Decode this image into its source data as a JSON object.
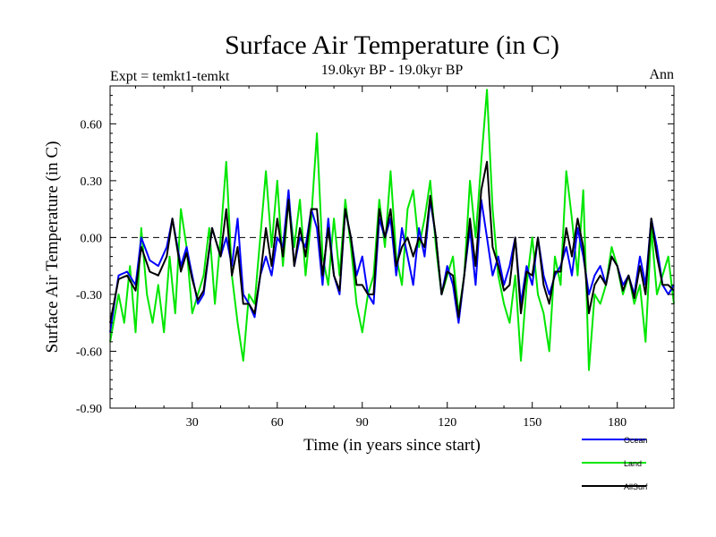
{
  "chart_data": {
    "type": "line",
    "title": "Surface Air Temperature (in C)",
    "subtitle": "19.0kyr BP - 19.0kyr BP",
    "left_label": "Expt = temkt1-temkt",
    "right_label": "Ann",
    "xlabel": "Time (in years since start)",
    "ylabel": "Surface Air Temperature (in C)",
    "xlim": [
      1,
      200
    ],
    "ylim": [
      -0.9,
      0.8
    ],
    "xticks": [
      30,
      60,
      90,
      120,
      150,
      180
    ],
    "yticks": [
      -0.9,
      -0.6,
      -0.3,
      0.0,
      0.3,
      0.6
    ],
    "ytick_labels": [
      "-0.90",
      "-0.60",
      "-0.30",
      "0.00",
      "0.30",
      "0.60"
    ],
    "reference_line": 0.0,
    "legend": {
      "placement": "bottom-right"
    },
    "keypoints": {
      "Ocean": [
        [
          1,
          -0.5
        ],
        [
          4,
          -0.2
        ],
        [
          7,
          -0.18
        ],
        [
          10,
          -0.25
        ],
        [
          12,
          0.0
        ],
        [
          15,
          -0.12
        ],
        [
          18,
          -0.15
        ],
        [
          21,
          -0.05
        ],
        [
          23,
          0.1
        ],
        [
          26,
          -0.15
        ],
        [
          28,
          -0.05
        ],
        [
          30,
          -0.2
        ],
        [
          32,
          -0.35
        ],
        [
          34,
          -0.3
        ],
        [
          37,
          0.05
        ],
        [
          40,
          -0.1
        ],
        [
          42,
          0.0
        ],
        [
          44,
          -0.15
        ],
        [
          46,
          0.1
        ],
        [
          48,
          -0.3
        ],
        [
          50,
          -0.35
        ],
        [
          52,
          -0.42
        ],
        [
          54,
          -0.2
        ],
        [
          56,
          -0.1
        ],
        [
          58,
          -0.2
        ],
        [
          60,
          0.0
        ],
        [
          62,
          -0.05
        ],
        [
          64,
          0.25
        ],
        [
          66,
          -0.15
        ],
        [
          68,
          0.0
        ],
        [
          70,
          -0.05
        ],
        [
          72,
          0.15
        ],
        [
          74,
          0.05
        ],
        [
          76,
          -0.25
        ],
        [
          78,
          0.1
        ],
        [
          80,
          -0.2
        ],
        [
          82,
          -0.3
        ],
        [
          84,
          0.15
        ],
        [
          86,
          0.0
        ],
        [
          88,
          -0.2
        ],
        [
          90,
          -0.1
        ],
        [
          92,
          -0.3
        ],
        [
          94,
          -0.35
        ],
        [
          96,
          0.1
        ],
        [
          98,
          0.0
        ],
        [
          100,
          0.1
        ],
        [
          102,
          -0.2
        ],
        [
          104,
          0.05
        ],
        [
          106,
          -0.1
        ],
        [
          108,
          -0.25
        ],
        [
          110,
          0.05
        ],
        [
          112,
          -0.1
        ],
        [
          114,
          0.2
        ],
        [
          116,
          0.0
        ],
        [
          118,
          -0.3
        ],
        [
          120,
          -0.15
        ],
        [
          122,
          -0.25
        ],
        [
          124,
          -0.45
        ],
        [
          126,
          -0.2
        ],
        [
          128,
          0.05
        ],
        [
          130,
          -0.25
        ],
        [
          132,
          0.2
        ],
        [
          134,
          0.0
        ],
        [
          136,
          -0.2
        ],
        [
          138,
          -0.1
        ],
        [
          140,
          -0.25
        ],
        [
          142,
          -0.15
        ],
        [
          144,
          0.0
        ],
        [
          146,
          -0.35
        ],
        [
          148,
          -0.15
        ],
        [
          150,
          -0.25
        ],
        [
          152,
          0.0
        ],
        [
          154,
          -0.2
        ],
        [
          156,
          -0.3
        ],
        [
          158,
          -0.2
        ],
        [
          160,
          -0.15
        ],
        [
          162,
          -0.05
        ],
        [
          164,
          -0.2
        ],
        [
          166,
          0.05
        ],
        [
          168,
          -0.1
        ],
        [
          170,
          -0.3
        ],
        [
          172,
          -0.2
        ],
        [
          174,
          -0.15
        ],
        [
          176,
          -0.25
        ],
        [
          178,
          -0.1
        ],
        [
          180,
          -0.15
        ],
        [
          182,
          -0.25
        ],
        [
          184,
          -0.2
        ],
        [
          186,
          -0.3
        ],
        [
          188,
          -0.1
        ],
        [
          190,
          -0.25
        ],
        [
          192,
          0.1
        ],
        [
          194,
          -0.05
        ],
        [
          196,
          -0.25
        ],
        [
          198,
          -0.3
        ],
        [
          200,
          -0.25
        ]
      ],
      "Land": [
        [
          1,
          -0.55
        ],
        [
          4,
          -0.3
        ],
        [
          6,
          -0.45
        ],
        [
          8,
          -0.15
        ],
        [
          10,
          -0.5
        ],
        [
          12,
          0.05
        ],
        [
          14,
          -0.3
        ],
        [
          16,
          -0.45
        ],
        [
          18,
          -0.25
        ],
        [
          20,
          -0.5
        ],
        [
          22,
          -0.1
        ],
        [
          24,
          -0.4
        ],
        [
          26,
          0.15
        ],
        [
          28,
          -0.05
        ],
        [
          30,
          -0.4
        ],
        [
          32,
          -0.3
        ],
        [
          34,
          -0.2
        ],
        [
          36,
          0.05
        ],
        [
          38,
          -0.35
        ],
        [
          40,
          0.0
        ],
        [
          42,
          0.4
        ],
        [
          44,
          -0.2
        ],
        [
          46,
          -0.45
        ],
        [
          48,
          -0.65
        ],
        [
          50,
          -0.3
        ],
        [
          52,
          -0.35
        ],
        [
          54,
          0.0
        ],
        [
          56,
          0.35
        ],
        [
          58,
          -0.05
        ],
        [
          60,
          0.3
        ],
        [
          62,
          -0.15
        ],
        [
          64,
          0.2
        ],
        [
          66,
          -0.05
        ],
        [
          68,
          0.2
        ],
        [
          70,
          -0.2
        ],
        [
          72,
          0.1
        ],
        [
          74,
          0.55
        ],
        [
          76,
          -0.1
        ],
        [
          78,
          -0.25
        ],
        [
          80,
          0.1
        ],
        [
          82,
          -0.2
        ],
        [
          84,
          0.2
        ],
        [
          86,
          -0.05
        ],
        [
          88,
          -0.35
        ],
        [
          90,
          -0.5
        ],
        [
          92,
          -0.3
        ],
        [
          94,
          -0.2
        ],
        [
          96,
          0.2
        ],
        [
          98,
          -0.05
        ],
        [
          100,
          0.35
        ],
        [
          102,
          -0.1
        ],
        [
          104,
          -0.25
        ],
        [
          106,
          0.15
        ],
        [
          108,
          0.25
        ],
        [
          110,
          -0.05
        ],
        [
          112,
          0.1
        ],
        [
          114,
          0.3
        ],
        [
          116,
          -0.05
        ],
        [
          118,
          -0.3
        ],
        [
          120,
          -0.2
        ],
        [
          122,
          -0.1
        ],
        [
          124,
          -0.4
        ],
        [
          126,
          -0.2
        ],
        [
          128,
          0.3
        ],
        [
          130,
          0.0
        ],
        [
          132,
          0.4
        ],
        [
          134,
          0.78
        ],
        [
          136,
          0.15
        ],
        [
          138,
          -0.2
        ],
        [
          140,
          -0.35
        ],
        [
          142,
          -0.45
        ],
        [
          144,
          -0.2
        ],
        [
          146,
          -0.65
        ],
        [
          148,
          -0.25
        ],
        [
          150,
          0.0
        ],
        [
          152,
          -0.3
        ],
        [
          154,
          -0.4
        ],
        [
          156,
          -0.6
        ],
        [
          158,
          -0.1
        ],
        [
          160,
          -0.25
        ],
        [
          162,
          0.35
        ],
        [
          164,
          0.1
        ],
        [
          166,
          -0.2
        ],
        [
          168,
          0.25
        ],
        [
          170,
          -0.7
        ],
        [
          172,
          -0.3
        ],
        [
          174,
          -0.35
        ],
        [
          176,
          -0.25
        ],
        [
          178,
          -0.05
        ],
        [
          180,
          -0.15
        ],
        [
          182,
          -0.3
        ],
        [
          184,
          -0.2
        ],
        [
          186,
          -0.35
        ],
        [
          188,
          -0.25
        ],
        [
          190,
          -0.55
        ],
        [
          192,
          0.05
        ],
        [
          194,
          -0.3
        ],
        [
          196,
          -0.2
        ],
        [
          198,
          -0.1
        ],
        [
          200,
          -0.35
        ]
      ],
      "AllSurf": [
        [
          1,
          -0.45
        ],
        [
          4,
          -0.22
        ],
        [
          7,
          -0.2
        ],
        [
          10,
          -0.28
        ],
        [
          12,
          -0.05
        ],
        [
          15,
          -0.18
        ],
        [
          18,
          -0.2
        ],
        [
          21,
          -0.1
        ],
        [
          23,
          0.1
        ],
        [
          26,
          -0.18
        ],
        [
          28,
          -0.08
        ],
        [
          30,
          -0.22
        ],
        [
          32,
          -0.33
        ],
        [
          34,
          -0.28
        ],
        [
          37,
          0.05
        ],
        [
          40,
          -0.1
        ],
        [
          42,
          0.15
        ],
        [
          44,
          -0.2
        ],
        [
          46,
          -0.05
        ],
        [
          48,
          -0.35
        ],
        [
          50,
          -0.35
        ],
        [
          52,
          -0.4
        ],
        [
          54,
          -0.2
        ],
        [
          56,
          0.05
        ],
        [
          58,
          -0.15
        ],
        [
          60,
          0.1
        ],
        [
          62,
          -0.1
        ],
        [
          64,
          0.2
        ],
        [
          66,
          -0.15
        ],
        [
          68,
          0.05
        ],
        [
          70,
          -0.1
        ],
        [
          72,
          0.15
        ],
        [
          74,
          0.15
        ],
        [
          76,
          -0.2
        ],
        [
          78,
          0.05
        ],
        [
          80,
          -0.2
        ],
        [
          82,
          -0.28
        ],
        [
          84,
          0.15
        ],
        [
          86,
          0.0
        ],
        [
          88,
          -0.25
        ],
        [
          90,
          -0.25
        ],
        [
          92,
          -0.3
        ],
        [
          94,
          -0.3
        ],
        [
          96,
          0.15
        ],
        [
          98,
          0.0
        ],
        [
          100,
          0.15
        ],
        [
          102,
          -0.15
        ],
        [
          104,
          -0.05
        ],
        [
          106,
          0.0
        ],
        [
          108,
          -0.1
        ],
        [
          110,
          0.0
        ],
        [
          112,
          -0.05
        ],
        [
          114,
          0.22
        ],
        [
          116,
          0.0
        ],
        [
          118,
          -0.3
        ],
        [
          120,
          -0.18
        ],
        [
          122,
          -0.2
        ],
        [
          124,
          -0.42
        ],
        [
          126,
          -0.2
        ],
        [
          128,
          0.1
        ],
        [
          130,
          -0.15
        ],
        [
          132,
          0.25
        ],
        [
          134,
          0.4
        ],
        [
          136,
          -0.05
        ],
        [
          138,
          -0.15
        ],
        [
          140,
          -0.28
        ],
        [
          142,
          -0.25
        ],
        [
          144,
          0.0
        ],
        [
          146,
          -0.4
        ],
        [
          148,
          -0.18
        ],
        [
          150,
          -0.2
        ],
        [
          152,
          0.0
        ],
        [
          154,
          -0.25
        ],
        [
          156,
          -0.35
        ],
        [
          158,
          -0.18
        ],
        [
          160,
          -0.18
        ],
        [
          162,
          0.05
        ],
        [
          164,
          -0.1
        ],
        [
          166,
          0.1
        ],
        [
          168,
          -0.05
        ],
        [
          170,
          -0.4
        ],
        [
          172,
          -0.25
        ],
        [
          174,
          -0.2
        ],
        [
          176,
          -0.25
        ],
        [
          178,
          -0.1
        ],
        [
          180,
          -0.15
        ],
        [
          182,
          -0.28
        ],
        [
          184,
          -0.2
        ],
        [
          186,
          -0.32
        ],
        [
          188,
          -0.15
        ],
        [
          190,
          -0.3
        ],
        [
          192,
          0.1
        ],
        [
          194,
          -0.1
        ],
        [
          196,
          -0.25
        ],
        [
          198,
          -0.25
        ],
        [
          200,
          -0.28
        ]
      ]
    },
    "series": [
      {
        "name": "Ocean",
        "color": "#0000ff",
        "values": []
      },
      {
        "name": "Land",
        "color": "#00e600",
        "values": []
      },
      {
        "name": "AllSurf",
        "color": "#000000",
        "values": []
      }
    ],
    "grid": false
  }
}
